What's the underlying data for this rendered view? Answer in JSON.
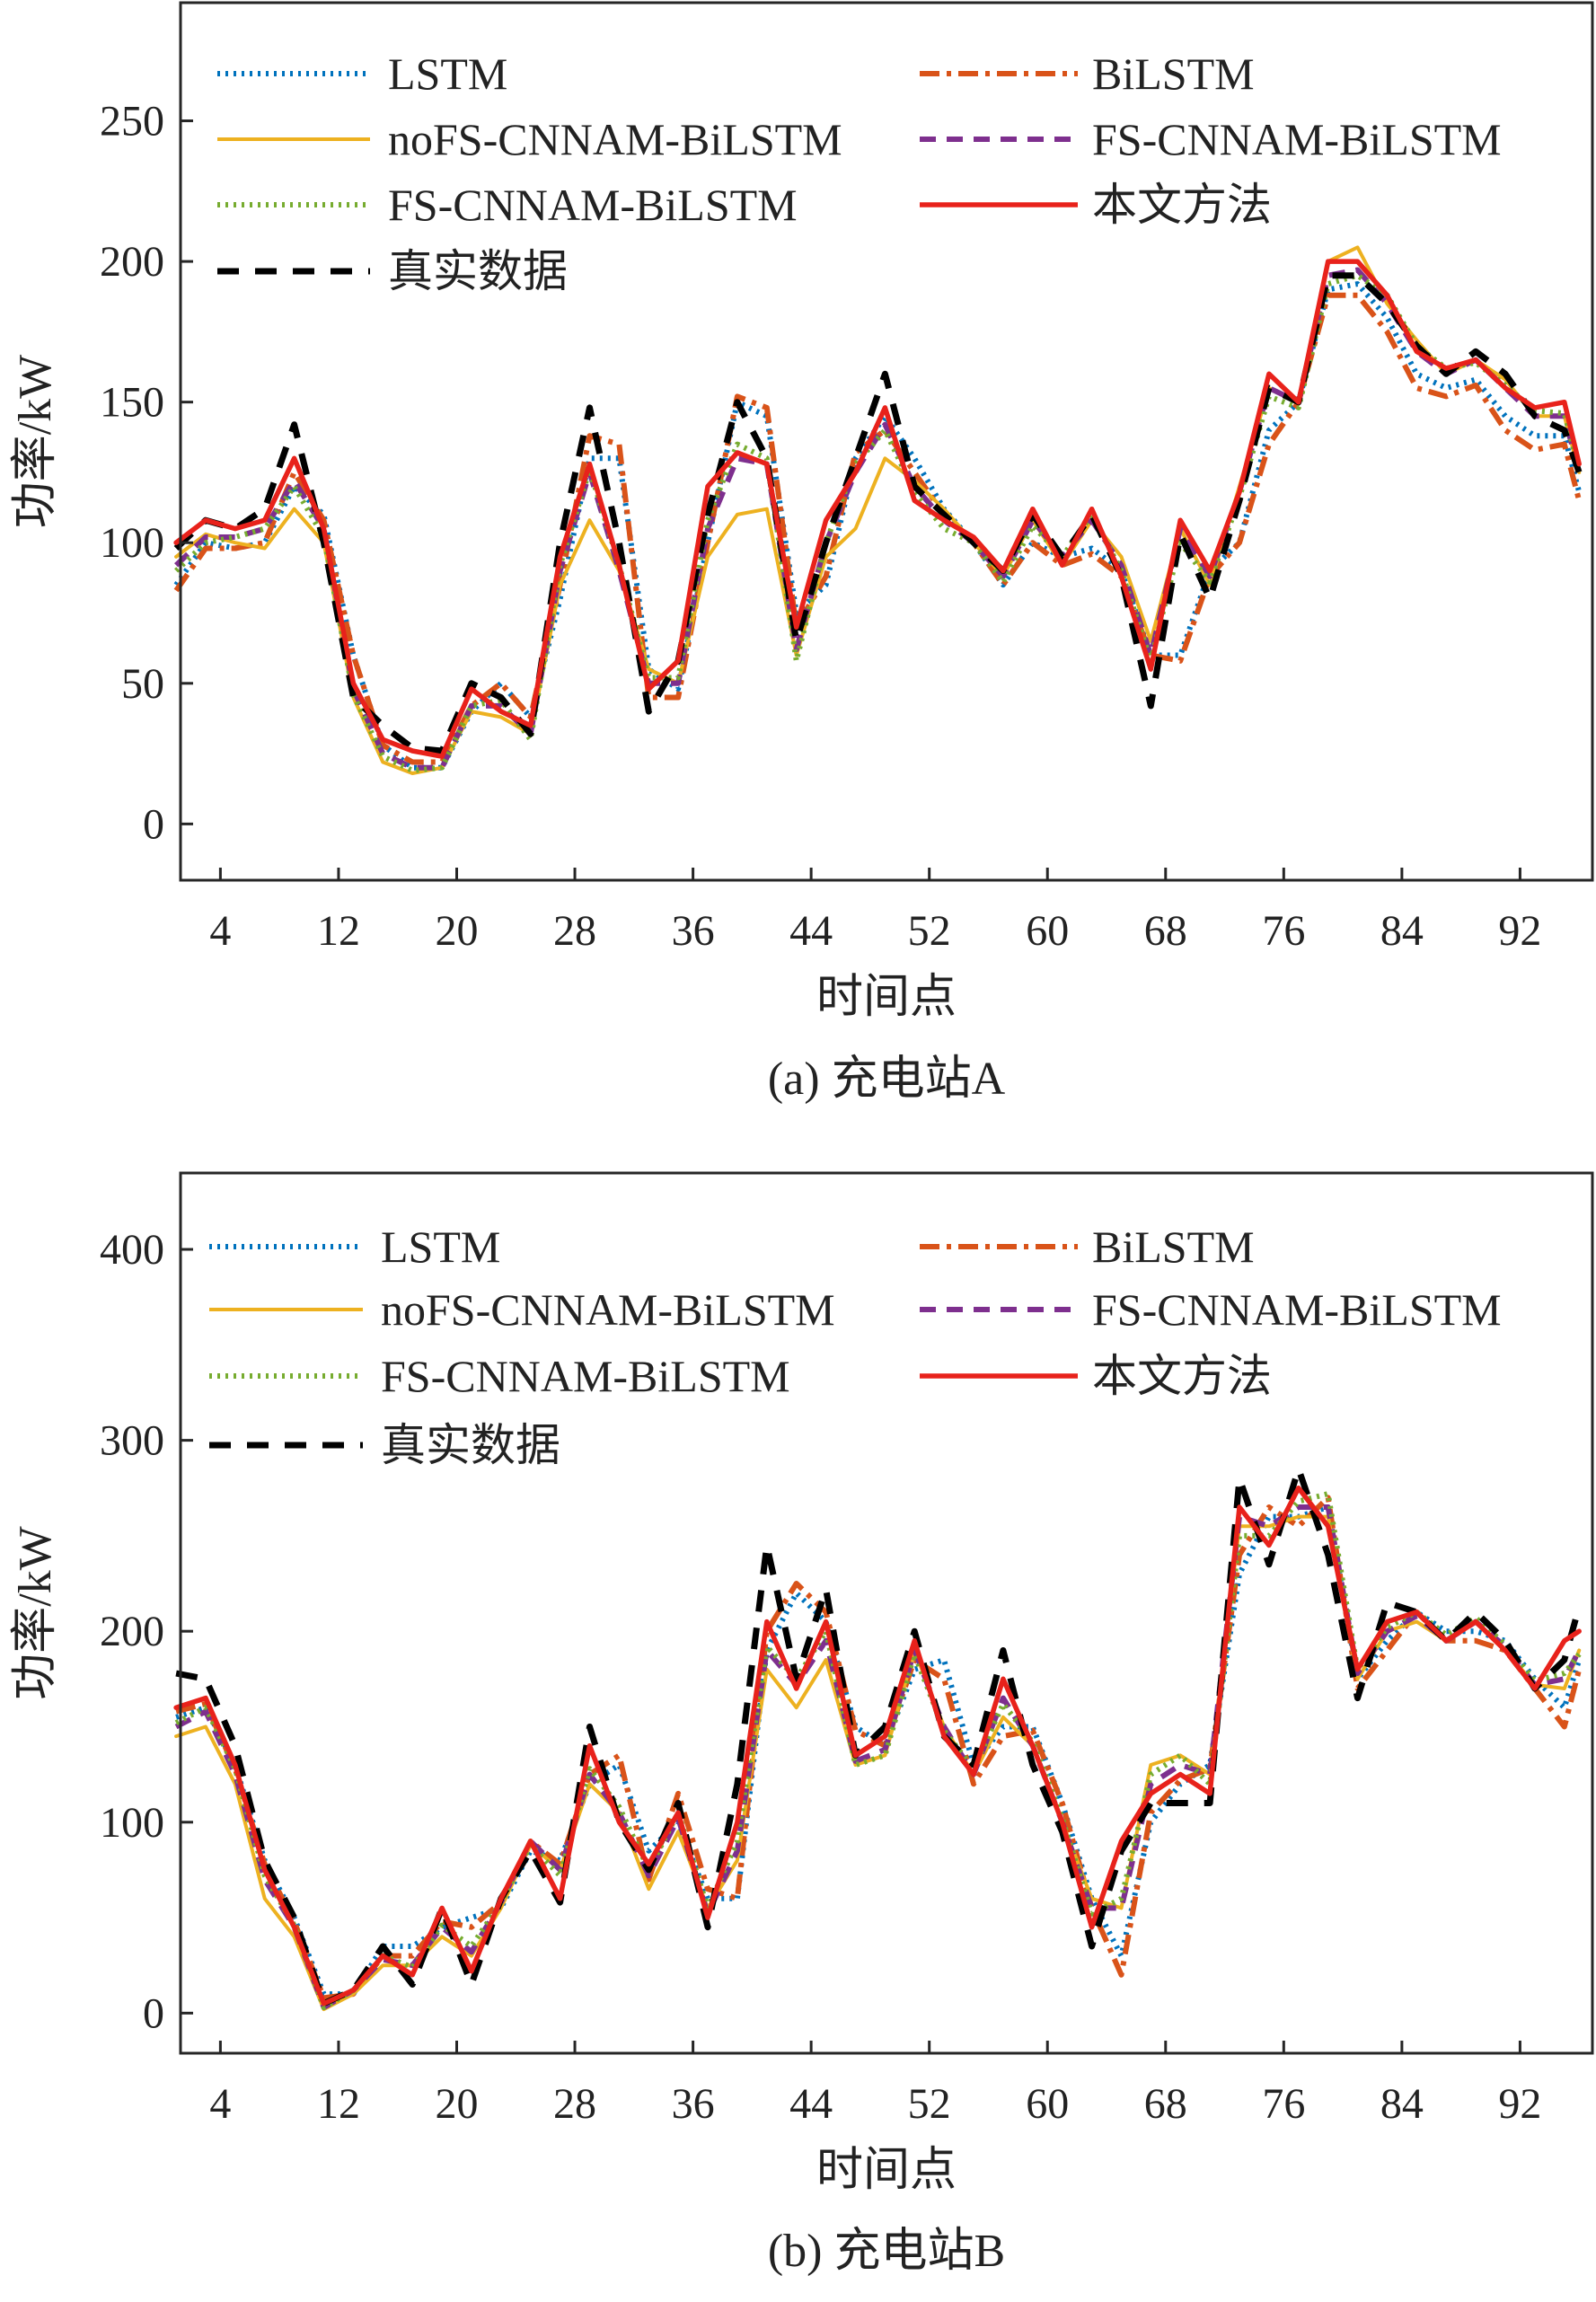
{
  "chart_data": [
    {
      "type": "line",
      "caption": "(a) 充电站A",
      "xlabel": "时间点",
      "ylabel": "功率/kW",
      "xlim": [
        1.3,
        96.9
      ],
      "ylim": [
        -20,
        292
      ],
      "xticks": [
        4,
        12,
        20,
        28,
        36,
        44,
        52,
        60,
        68,
        76,
        84,
        92
      ],
      "yticks": [
        0,
        50,
        100,
        150,
        200,
        250
      ],
      "legend_position": "top",
      "x": [
        1,
        3,
        5,
        7,
        9,
        11,
        13,
        15,
        17,
        19,
        21,
        23,
        25,
        27,
        29,
        31,
        33,
        35,
        37,
        39,
        41,
        43,
        45,
        47,
        49,
        51,
        53,
        55,
        57,
        59,
        61,
        63,
        65,
        67,
        69,
        71,
        73,
        75,
        77,
        79,
        81,
        83,
        85,
        87,
        89,
        91,
        93,
        95,
        96
      ],
      "series": [
        {
          "name": "LSTM",
          "color": "#0072BD",
          "style": "dotted",
          "values": [
            85,
            100,
            98,
            100,
            120,
            110,
            60,
            28,
            20,
            20,
            40,
            50,
            38,
            80,
            130,
            130,
            55,
            48,
            100,
            150,
            145,
            75,
            85,
            130,
            145,
            130,
            112,
            100,
            85,
            100,
            95,
            98,
            90,
            60,
            60,
            90,
            100,
            140,
            150,
            190,
            192,
            180,
            160,
            155,
            158,
            145,
            138,
            138,
            118
          ]
        },
        {
          "name": "BiLSTM",
          "color": "#D95319",
          "style": "dashdot",
          "values": [
            83,
            98,
            98,
            100,
            125,
            108,
            60,
            28,
            22,
            22,
            42,
            50,
            38,
            85,
            138,
            135,
            45,
            45,
            100,
            152,
            148,
            70,
            88,
            132,
            140,
            125,
            110,
            100,
            85,
            100,
            92,
            96,
            88,
            60,
            58,
            88,
            100,
            135,
            150,
            188,
            188,
            175,
            155,
            152,
            156,
            140,
            133,
            135,
            115
          ]
        },
        {
          "name": "noFS-CNNAM-BiLSTM",
          "color": "#EDB120",
          "style": "solid-thin",
          "values": [
            95,
            103,
            100,
            98,
            112,
            100,
            45,
            22,
            18,
            20,
            40,
            38,
            32,
            85,
            108,
            90,
            55,
            50,
            95,
            110,
            112,
            60,
            95,
            105,
            130,
            122,
            112,
            100,
            88,
            108,
            92,
            108,
            95,
            65,
            105,
            85,
            120,
            155,
            150,
            200,
            205,
            185,
            172,
            160,
            165,
            158,
            145,
            145,
            125
          ]
        },
        {
          "name": "FS-CNNAM-BiLSTM",
          "color": "#7E2F8E",
          "style": "dashed",
          "values": [
            92,
            102,
            102,
            105,
            122,
            105,
            48,
            25,
            20,
            20,
            42,
            42,
            32,
            90,
            125,
            90,
            50,
            50,
            105,
            130,
            128,
            62,
            100,
            125,
            142,
            120,
            108,
            100,
            88,
            108,
            95,
            108,
            92,
            60,
            105,
            88,
            118,
            155,
            150,
            195,
            197,
            185,
            168,
            160,
            165,
            155,
            145,
            145,
            125
          ]
        },
        {
          "name": "FS-CNNAM-BiLSTM",
          "color": "#77AC30",
          "style": "dotted",
          "values": [
            90,
            100,
            102,
            105,
            120,
            102,
            46,
            24,
            19,
            20,
            42,
            44,
            30,
            92,
            126,
            92,
            52,
            52,
            108,
            135,
            130,
            58,
            100,
            128,
            140,
            118,
            105,
            100,
            86,
            106,
            95,
            110,
            90,
            58,
            100,
            86,
            116,
            152,
            148,
            192,
            195,
            188,
            170,
            162,
            164,
            156,
            147,
            146,
            126
          ]
        },
        {
          "name": "本文方法",
          "color": "#E8221B",
          "style": "solid",
          "values": [
            100,
            108,
            105,
            108,
            130,
            105,
            50,
            30,
            26,
            24,
            48,
            40,
            35,
            95,
            128,
            92,
            48,
            58,
            120,
            132,
            128,
            70,
            108,
            125,
            148,
            115,
            108,
            102,
            90,
            112,
            92,
            112,
            88,
            55,
            108,
            90,
            118,
            160,
            150,
            200,
            200,
            188,
            168,
            162,
            165,
            155,
            148,
            150,
            128
          ]
        },
        {
          "name": "真实数据",
          "color": "#000000",
          "style": "dashed-thick",
          "values": [
            98,
            108,
            105,
            112,
            142,
            100,
            45,
            35,
            27,
            26,
            50,
            45,
            32,
            100,
            148,
            100,
            40,
            58,
            110,
            150,
            130,
            65,
            100,
            130,
            160,
            120,
            110,
            100,
            90,
            110,
            95,
            110,
            88,
            42,
            103,
            80,
            115,
            155,
            150,
            195,
            195,
            185,
            170,
            160,
            168,
            160,
            145,
            140,
            125
          ]
        }
      ]
    },
    {
      "type": "line",
      "caption": "(b) 充电站B",
      "xlabel": "时间点",
      "ylabel": "功率/kW",
      "xlim": [
        1.3,
        96.9
      ],
      "ylim": [
        -21,
        440
      ],
      "xticks": [
        4,
        12,
        20,
        28,
        36,
        44,
        52,
        60,
        68,
        76,
        84,
        92
      ],
      "yticks": [
        0,
        100,
        200,
        300,
        400
      ],
      "legend_position": "top",
      "x": [
        1,
        3,
        5,
        7,
        9,
        11,
        13,
        15,
        17,
        19,
        21,
        23,
        25,
        27,
        29,
        31,
        33,
        35,
        37,
        39,
        41,
        43,
        45,
        47,
        49,
        51,
        53,
        55,
        57,
        59,
        61,
        63,
        65,
        67,
        69,
        71,
        73,
        75,
        77,
        79,
        81,
        83,
        85,
        87,
        89,
        91,
        93,
        95,
        96
      ],
      "series": [
        {
          "name": "LSTM",
          "color": "#0072BD",
          "style": "dotted",
          "values": [
            155,
            160,
            130,
            80,
            50,
            10,
            10,
            35,
            35,
            45,
            50,
            55,
            85,
            80,
            120,
            130,
            85,
            100,
            60,
            60,
            190,
            220,
            205,
            150,
            140,
            180,
            185,
            130,
            150,
            150,
            110,
            60,
            30,
            100,
            120,
            130,
            230,
            260,
            260,
            265,
            175,
            195,
            210,
            200,
            200,
            195,
            175,
            160,
            185
          ]
        },
        {
          "name": "BiLSTM",
          "color": "#D95319",
          "style": "dashdot",
          "values": [
            158,
            162,
            128,
            78,
            48,
            8,
            10,
            30,
            30,
            48,
            45,
            58,
            90,
            78,
            125,
            135,
            70,
            115,
            65,
            60,
            200,
            225,
            210,
            148,
            140,
            185,
            175,
            120,
            145,
            148,
            110,
            55,
            20,
            105,
            122,
            128,
            240,
            265,
            255,
            270,
            170,
            190,
            210,
            195,
            195,
            190,
            170,
            150,
            180
          ]
        },
        {
          "name": "noFS-CNNAM-BiLSTM",
          "color": "#EDB120",
          "style": "solid-thin",
          "values": [
            145,
            150,
            120,
            60,
            40,
            2,
            10,
            25,
            25,
            40,
            30,
            55,
            88,
            75,
            120,
            105,
            65,
            95,
            55,
            80,
            180,
            160,
            185,
            130,
            135,
            190,
            150,
            125,
            155,
            140,
            100,
            60,
            55,
            130,
            135,
            125,
            255,
            255,
            260,
            260,
            175,
            200,
            205,
            195,
            205,
            190,
            172,
            170,
            190
          ]
        },
        {
          "name": "FS-CNNAM-BiLSTM",
          "color": "#7E2F8E",
          "style": "dashed",
          "values": [
            150,
            158,
            125,
            70,
            45,
            3,
            12,
            28,
            25,
            45,
            32,
            58,
            90,
            75,
            125,
            105,
            72,
            102,
            52,
            85,
            190,
            172,
            195,
            132,
            138,
            190,
            150,
            125,
            165,
            140,
            100,
            55,
            55,
            120,
            130,
            125,
            260,
            255,
            265,
            265,
            178,
            200,
            208,
            195,
            205,
            192,
            172,
            175,
            190
          ]
        },
        {
          "name": "FS-CNNAM-BiLSTM",
          "color": "#77AC30",
          "style": "dotted",
          "values": [
            152,
            160,
            128,
            72,
            46,
            3,
            12,
            30,
            24,
            46,
            35,
            58,
            88,
            72,
            128,
            108,
            75,
            105,
            55,
            90,
            192,
            175,
            200,
            130,
            135,
            188,
            148,
            128,
            162,
            142,
            102,
            52,
            60,
            125,
            135,
            120,
            250,
            250,
            268,
            272,
            180,
            202,
            210,
            198,
            207,
            193,
            174,
            178,
            188
          ]
        },
        {
          "name": "本文方法",
          "color": "#E8221B",
          "style": "solid",
          "values": [
            160,
            165,
            130,
            75,
            45,
            5,
            12,
            30,
            20,
            55,
            22,
            60,
            90,
            60,
            140,
            100,
            78,
            105,
            50,
            100,
            205,
            170,
            205,
            135,
            145,
            195,
            145,
            125,
            175,
            140,
            100,
            45,
            90,
            115,
            125,
            115,
            265,
            245,
            275,
            255,
            180,
            205,
            210,
            195,
            205,
            190,
            170,
            195,
            200
          ]
        },
        {
          "name": "真实数据",
          "color": "#000000",
          "style": "dashed-thick",
          "values": [
            178,
            175,
            140,
            80,
            50,
            5,
            12,
            35,
            15,
            55,
            15,
            60,
            85,
            58,
            150,
            100,
            75,
            110,
            45,
            120,
            245,
            175,
            222,
            135,
            150,
            200,
            145,
            130,
            190,
            130,
            95,
            35,
            85,
            110,
            110,
            110,
            280,
            235,
            285,
            240,
            165,
            215,
            210,
            195,
            210,
            195,
            170,
            185,
            213
          ]
        }
      ]
    }
  ]
}
